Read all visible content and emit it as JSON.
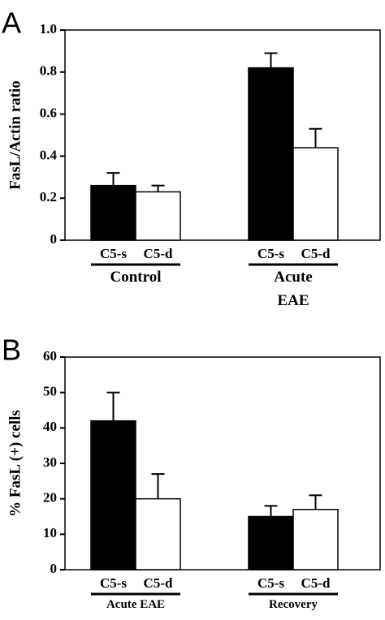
{
  "chart_data": [
    {
      "type": "bar",
      "panel": "A",
      "y_label": "FasL/Actin ratio",
      "categories": [
        "Control",
        "Acute EAE"
      ],
      "series": [
        {
          "name": "C5-s",
          "color": "#000000",
          "values": [
            0.26,
            0.82
          ],
          "errors": [
            0.06,
            0.07
          ]
        },
        {
          "name": "C5-d",
          "color": "#ffffff",
          "values": [
            0.23,
            0.44
          ],
          "errors": [
            0.03,
            0.09
          ]
        }
      ],
      "ylim": [
        0,
        1
      ],
      "yticks": [
        0,
        0.2,
        0.4,
        0.6,
        0.8,
        {
          "value": 1,
          "label": "1.0"
        }
      ]
    },
    {
      "type": "bar",
      "panel": "B",
      "y_label": "% FasL (+) cells",
      "categories": [
        "Acute EAE",
        "Recovery"
      ],
      "series": [
        {
          "name": "C5-s",
          "color": "#000000",
          "values": [
            42,
            15
          ],
          "errors": [
            8,
            3
          ]
        },
        {
          "name": "C5-d",
          "color": "#ffffff",
          "values": [
            20,
            17
          ],
          "errors": [
            7,
            4
          ]
        }
      ],
      "ylim": [
        0,
        60
      ],
      "yticks": [
        0,
        10,
        20,
        30,
        40,
        50,
        60
      ]
    }
  ]
}
